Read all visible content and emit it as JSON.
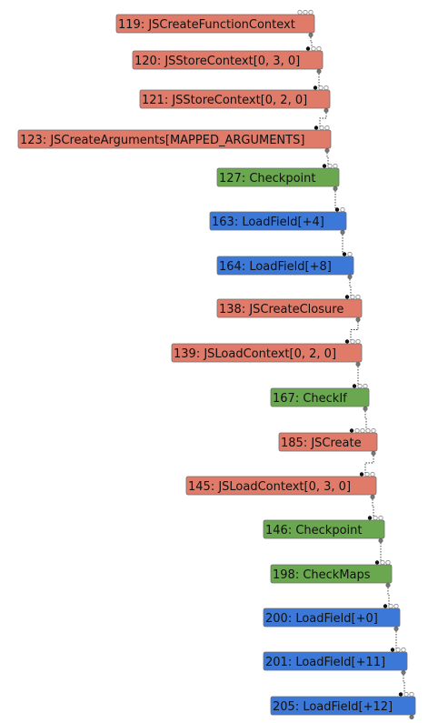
{
  "colors": {
    "js_node": "#e07b6a",
    "control_node": "#6aa84f",
    "load_node": "#3c78d8"
  },
  "nodes": [
    {
      "id": "119",
      "label": "119: JSCreateFunctionContext",
      "kind": "js",
      "inputs": 3
    },
    {
      "id": "120",
      "label": "120: JSStoreContext[0, 3, 0]",
      "kind": "js",
      "inputs": 3
    },
    {
      "id": "121",
      "label": "121: JSStoreContext[0, 2, 0]",
      "kind": "js",
      "inputs": 3
    },
    {
      "id": "123",
      "label": "123: JSCreateArguments[MAPPED_ARGUMENTS]",
      "kind": "js",
      "inputs": 3
    },
    {
      "id": "127",
      "label": "127: Checkpoint",
      "kind": "control",
      "inputs": 3
    },
    {
      "id": "163",
      "label": "163: LoadField[+4]",
      "kind": "load",
      "inputs": 2
    },
    {
      "id": "164",
      "label": "164: LoadField[+8]",
      "kind": "load",
      "inputs": 2
    },
    {
      "id": "138",
      "label": "138: JSCreateClosure",
      "kind": "js",
      "inputs": 3
    },
    {
      "id": "139",
      "label": "139: JSLoadContext[0, 2, 0]",
      "kind": "js",
      "inputs": 3
    },
    {
      "id": "167",
      "label": "167: CheckIf",
      "kind": "control",
      "inputs": 3
    },
    {
      "id": "185",
      "label": "185: JSCreate",
      "kind": "js",
      "inputs": 5
    },
    {
      "id": "145",
      "label": "145: JSLoadContext[0, 3, 0]",
      "kind": "js",
      "inputs": 3
    },
    {
      "id": "146",
      "label": "146: Checkpoint",
      "kind": "control",
      "inputs": 3
    },
    {
      "id": "198",
      "label": "198: CheckMaps",
      "kind": "control",
      "inputs": 3
    },
    {
      "id": "200",
      "label": "200: LoadField[+0]",
      "kind": "load",
      "inputs": 3
    },
    {
      "id": "201",
      "label": "201: LoadField[+11]",
      "kind": "load",
      "inputs": 3
    },
    {
      "id": "205",
      "label": "205: LoadField[+12]",
      "kind": "load",
      "inputs": 3
    }
  ]
}
